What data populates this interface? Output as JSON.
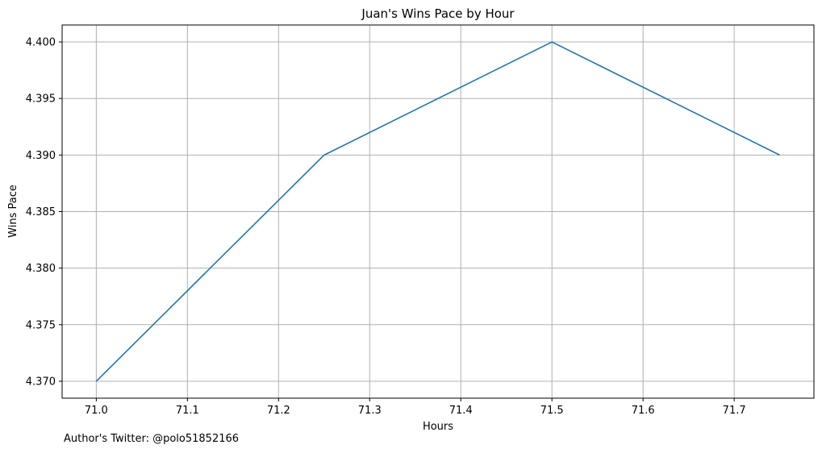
{
  "chart_data": {
    "type": "line",
    "title": "Juan's Wins Pace by Hour",
    "xlabel": "Hours",
    "ylabel": "Wins Pace",
    "xlim": [
      70.9625,
      71.7875
    ],
    "ylim": [
      4.3685,
      4.4015
    ],
    "xticks": [
      71.0,
      71.1,
      71.2,
      71.3,
      71.4,
      71.5,
      71.6,
      71.7
    ],
    "xtick_labels": [
      "71.0",
      "71.1",
      "71.2",
      "71.3",
      "71.4",
      "71.5",
      "71.6",
      "71.7"
    ],
    "yticks": [
      4.37,
      4.375,
      4.38,
      4.385,
      4.39,
      4.395,
      4.4
    ],
    "ytick_labels": [
      "4.370",
      "4.375",
      "4.380",
      "4.385",
      "4.390",
      "4.395",
      "4.400"
    ],
    "grid": true,
    "series": [
      {
        "x": [
          71.0,
          71.25,
          71.5,
          71.75
        ],
        "y": [
          4.37,
          4.39,
          4.4,
          4.39
        ],
        "color": "#1f77b4"
      }
    ]
  },
  "footer": {
    "note": "Author's Twitter: @polo51852166"
  }
}
